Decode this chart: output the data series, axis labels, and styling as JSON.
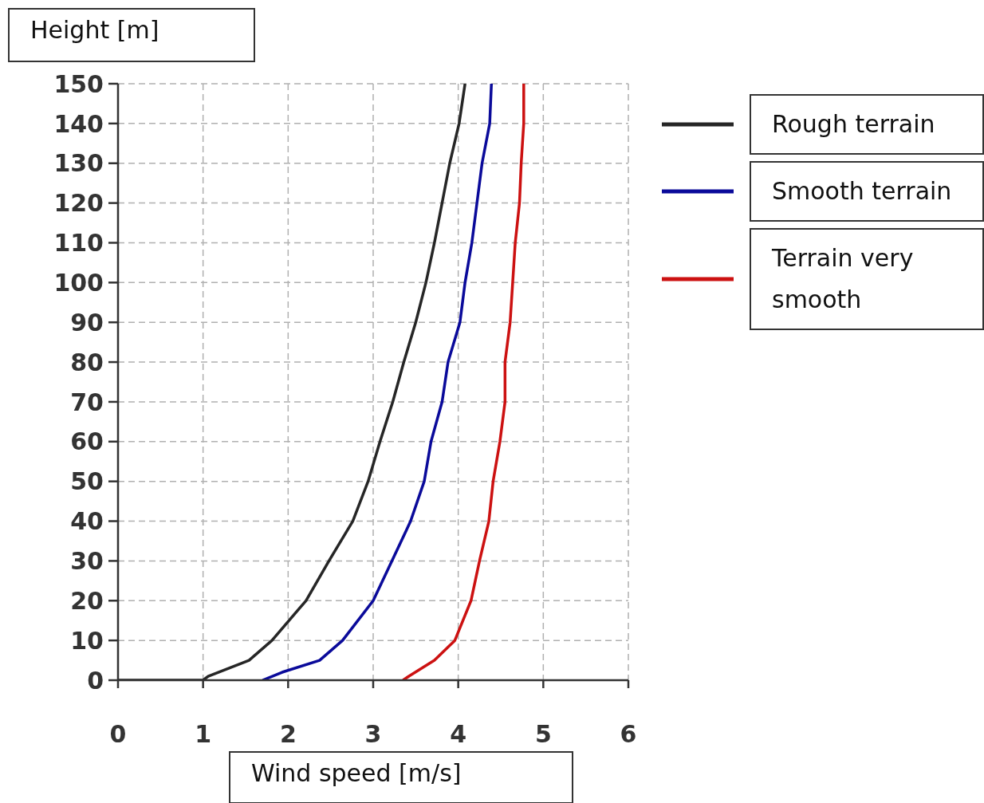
{
  "chart_data": {
    "type": "line",
    "xlabel": "Wind speed [m/s]",
    "ylabel": "Height [m]",
    "xlim": [
      0,
      6
    ],
    "xticks": [
      0,
      1,
      2,
      3,
      4,
      5,
      6
    ],
    "ylim": [
      0,
      150
    ],
    "yticks": [
      0,
      10,
      20,
      30,
      40,
      50,
      60,
      70,
      80,
      90,
      100,
      110,
      120,
      130,
      140,
      150
    ],
    "grid": true,
    "legend": "right",
    "marker": "none",
    "line_style": "solid",
    "series": [
      {
        "name": "Rough terrain",
        "color": "#262626",
        "x": [
          0,
          1.0,
          1.06,
          1.54,
          1.81,
          2.21,
          2.48,
          2.76,
          2.94,
          3.08,
          3.23,
          3.36,
          3.5,
          3.62,
          3.72,
          3.81,
          3.9,
          4.01,
          4.08
        ],
        "values": [
          0,
          0,
          1,
          5,
          10,
          20,
          30,
          40,
          50,
          60,
          70,
          80,
          90,
          100,
          110,
          120,
          130,
          140,
          150
        ]
      },
      {
        "name": "Smooth terrain",
        "color": "#0a0a9a",
        "x": [
          1.7,
          1.93,
          2.37,
          2.64,
          3.0,
          3.22,
          3.44,
          3.6,
          3.68,
          3.81,
          3.88,
          4.02,
          4.08,
          4.16,
          4.22,
          4.28,
          4.37,
          4.39
        ],
        "values": [
          0,
          2,
          5,
          10,
          20,
          30,
          40,
          50,
          60,
          70,
          80,
          90,
          100,
          110,
          120,
          130,
          140,
          150
        ]
      },
      {
        "name": "Terrain very smooth",
        "color": "#cc1111",
        "x": [
          3.35,
          3.42,
          3.72,
          3.96,
          4.15,
          4.25,
          4.36,
          4.41,
          4.49,
          4.55,
          4.55,
          4.61,
          4.64,
          4.67,
          4.72,
          4.74,
          4.77,
          4.77
        ],
        "values": [
          0,
          1,
          5,
          10,
          20,
          30,
          40,
          50,
          60,
          70,
          80,
          90,
          100,
          110,
          120,
          130,
          140,
          150
        ]
      }
    ]
  }
}
